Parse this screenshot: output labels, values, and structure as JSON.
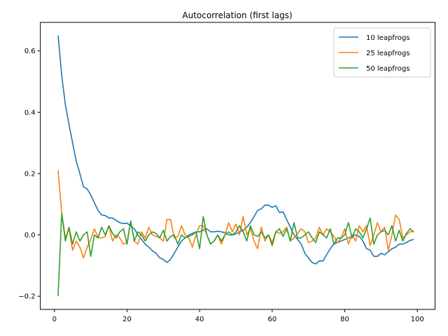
{
  "chart_data": {
    "type": "line",
    "title": "Autocorrelation (first lags)",
    "xlabel": "",
    "ylabel": "",
    "xlim": [
      -3.9,
      104.9
    ],
    "ylim": [
      -0.243,
      0.693
    ],
    "xticks": [
      0,
      20,
      40,
      60,
      80,
      100
    ],
    "yticks": [
      -0.2,
      0.0,
      0.2,
      0.4,
      0.6
    ],
    "ytick_labels": [
      "−0.2",
      "0.0",
      "0.2",
      "0.4",
      "0.6"
    ],
    "grid": false,
    "legend_position": "top-right",
    "x": [
      1,
      2,
      3,
      4,
      5,
      6,
      7,
      8,
      9,
      10,
      11,
      12,
      13,
      14,
      15,
      16,
      17,
      18,
      19,
      20,
      21,
      22,
      23,
      24,
      25,
      26,
      27,
      28,
      29,
      30,
      31,
      32,
      33,
      34,
      35,
      36,
      37,
      38,
      39,
      40,
      41,
      42,
      43,
      44,
      45,
      46,
      47,
      48,
      49,
      50,
      51,
      52,
      53,
      54,
      55,
      56,
      57,
      58,
      59,
      60,
      61,
      62,
      63,
      64,
      65,
      66,
      67,
      68,
      69,
      70,
      71,
      72,
      73,
      74,
      75,
      76,
      77,
      78,
      79,
      80,
      81,
      82,
      83,
      84,
      85,
      86,
      87,
      88,
      89,
      90,
      91,
      92,
      93,
      94,
      95,
      96,
      97,
      98,
      99
    ],
    "series": [
      {
        "name": "10 leapfrogs",
        "color": "#1f77b4",
        "values": [
          0.65,
          0.52,
          0.425,
          0.36,
          0.3,
          0.24,
          0.2,
          0.157,
          0.15,
          0.13,
          0.105,
          0.08,
          0.065,
          0.063,
          0.055,
          0.055,
          0.047,
          0.04,
          0.037,
          0.038,
          0.03,
          0.02,
          0.0,
          -0.015,
          -0.03,
          -0.04,
          -0.052,
          -0.06,
          -0.075,
          -0.08,
          -0.09,
          -0.08,
          -0.06,
          -0.04,
          -0.02,
          -0.01,
          0.0,
          0.005,
          0.01,
          0.01,
          0.015,
          0.02,
          0.01,
          0.01,
          0.012,
          0.01,
          0.007,
          0.0,
          0.0,
          0.003,
          0.01,
          0.015,
          0.025,
          0.04,
          0.06,
          0.08,
          0.085,
          0.097,
          0.097,
          0.09,
          0.095,
          0.073,
          0.075,
          0.05,
          0.025,
          0.0,
          -0.015,
          -0.03,
          -0.06,
          -0.075,
          -0.09,
          -0.095,
          -0.085,
          -0.085,
          -0.065,
          -0.045,
          -0.03,
          -0.025,
          -0.02,
          -0.015,
          -0.01,
          -0.005,
          0.0,
          -0.005,
          -0.02,
          -0.045,
          -0.05,
          -0.07,
          -0.07,
          -0.06,
          -0.065,
          -0.055,
          -0.045,
          -0.04,
          -0.03,
          -0.03,
          -0.025,
          -0.018,
          -0.015
        ]
      },
      {
        "name": "25 leapfrogs",
        "color": "#ff7f0e",
        "values": [
          0.21,
          0.07,
          -0.01,
          0.02,
          -0.05,
          -0.02,
          -0.04,
          -0.075,
          -0.04,
          -0.015,
          0.02,
          -0.008,
          -0.01,
          -0.005,
          0.03,
          -0.02,
          0.0,
          -0.01,
          -0.03,
          -0.025,
          0.045,
          -0.02,
          -0.03,
          0.01,
          -0.01,
          0.025,
          0.0,
          -0.005,
          -0.01,
          -0.02,
          0.05,
          0.05,
          -0.01,
          -0.005,
          0.03,
          0.0,
          -0.01,
          -0.04,
          0.0,
          0.03,
          0.03,
          0.0,
          -0.03,
          -0.02,
          0.0,
          -0.03,
          0.0,
          0.04,
          0.01,
          0.035,
          0.0,
          0.06,
          0.0,
          0.02,
          -0.02,
          -0.045,
          0.025,
          -0.02,
          0.0,
          -0.025,
          0.01,
          0.005,
          0.01,
          0.025,
          -0.02,
          -0.01,
          0.005,
          0.02,
          0.01,
          -0.025,
          -0.02,
          -0.01,
          0.025,
          0.0,
          0.02,
          0.01,
          -0.005,
          -0.025,
          -0.01,
          0.02,
          -0.03,
          0.0,
          -0.02,
          0.03,
          0.01,
          0.03,
          -0.035,
          0.0,
          0.04,
          0.01,
          0.025,
          -0.05,
          0.0,
          0.065,
          0.05,
          -0.01,
          0.0,
          0.01,
          0.01
        ]
      },
      {
        "name": "50 leapfrogs",
        "color": "#2ca02c",
        "values": [
          -0.2,
          0.07,
          -0.02,
          0.025,
          -0.03,
          0.01,
          -0.02,
          0.0,
          0.01,
          -0.07,
          0.0,
          -0.01,
          0.025,
          0.0,
          0.03,
          0.005,
          -0.01,
          0.01,
          0.02,
          -0.03,
          0.045,
          -0.02,
          0.01,
          0.0,
          -0.02,
          0.0,
          0.01,
          0.005,
          -0.01,
          0.015,
          -0.02,
          -0.005,
          0.0,
          -0.03,
          0.0,
          -0.01,
          -0.005,
          0.0,
          0.01,
          -0.045,
          0.06,
          0.0,
          -0.03,
          -0.02,
          0.0,
          -0.02,
          0.0,
          0.01,
          0.0,
          0.01,
          0.03,
          0.01,
          -0.02,
          0.03,
          0.0,
          -0.005,
          0.01,
          -0.01,
          0.0,
          -0.035,
          0.01,
          0.02,
          -0.005,
          0.02,
          -0.02,
          0.04,
          -0.01,
          -0.01,
          0.0,
          0.01,
          -0.01,
          -0.025,
          0.01,
          0.0,
          -0.01,
          0.02,
          -0.03,
          -0.01,
          -0.01,
          0.0,
          0.04,
          -0.01,
          0.02,
          0.01,
          -0.01,
          0.02,
          0.055,
          -0.03,
          0.0,
          0.01,
          0.015,
          0.0,
          0.03,
          -0.02,
          0.015,
          -0.02,
          0.005,
          0.02,
          0.01
        ]
      }
    ]
  }
}
